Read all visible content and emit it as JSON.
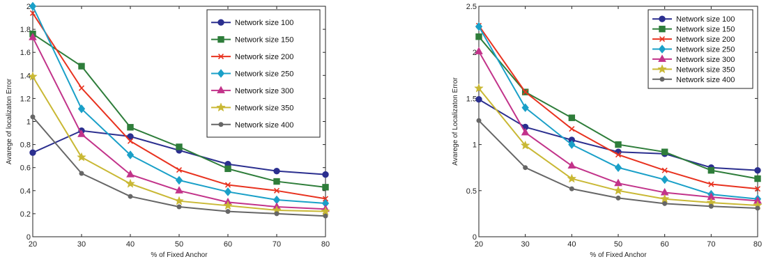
{
  "chart_data": [
    {
      "type": "line",
      "xlabel": "% of Fixed Anchor",
      "ylabel": "Avarege of localizaton Error",
      "x": [
        20,
        30,
        40,
        50,
        60,
        70,
        80
      ],
      "xlim": [
        20,
        80
      ],
      "ylim": [
        0,
        2
      ],
      "xticks": [
        "20",
        "30",
        "40",
        "50",
        "60",
        "70",
        "80"
      ],
      "yticks": [
        "0",
        "0.2",
        "0.4",
        "0.6",
        "0.8",
        "1",
        "1.2",
        "1.4",
        "1.6",
        "1.8",
        "2"
      ],
      "legend_position": "top-right",
      "grid": false,
      "series": [
        {
          "name": "Network size 100",
          "color": "#2b2f8f",
          "marker": "circle",
          "values": [
            0.73,
            0.92,
            0.87,
            0.75,
            0.63,
            0.57,
            0.54
          ]
        },
        {
          "name": "Network size 150",
          "color": "#2e7d3a",
          "marker": "square",
          "values": [
            1.76,
            1.48,
            0.95,
            0.78,
            0.59,
            0.48,
            0.43
          ]
        },
        {
          "name": "Network size 200",
          "color": "#e8321f",
          "marker": "x",
          "values": [
            1.94,
            1.29,
            0.83,
            0.58,
            0.45,
            0.4,
            0.33
          ]
        },
        {
          "name": "Network size 250",
          "color": "#1aa0c8",
          "marker": "diamond",
          "values": [
            2.0,
            1.11,
            0.71,
            0.49,
            0.39,
            0.32,
            0.29
          ]
        },
        {
          "name": "Network size 300",
          "color": "#c2338a",
          "marker": "triangle",
          "values": [
            1.73,
            0.89,
            0.54,
            0.4,
            0.3,
            0.26,
            0.24
          ]
        },
        {
          "name": "Network size 350",
          "color": "#c9b834",
          "marker": "star",
          "values": [
            1.39,
            0.69,
            0.46,
            0.31,
            0.27,
            0.23,
            0.22
          ]
        },
        {
          "name": "Network size 400",
          "color": "#666666",
          "marker": "dot",
          "values": [
            1.04,
            0.55,
            0.35,
            0.26,
            0.22,
            0.2,
            0.18
          ]
        }
      ]
    },
    {
      "type": "line",
      "xlabel": "% of Fixed Anchor",
      "ylabel": "Avarege of Localizaton Error",
      "x": [
        20,
        30,
        40,
        50,
        60,
        70,
        80
      ],
      "xlim": [
        20,
        80
      ],
      "ylim": [
        0,
        2.5
      ],
      "xticks": [
        "20",
        "30",
        "40",
        "50",
        "60",
        "70",
        "80"
      ],
      "yticks": [
        "0",
        "0.5",
        "1",
        "1.5",
        "2",
        "2.5"
      ],
      "legend_position": "top-right",
      "grid": false,
      "series": [
        {
          "name": "Network size 100",
          "color": "#2b2f8f",
          "marker": "circle",
          "values": [
            1.49,
            1.19,
            1.05,
            0.92,
            0.9,
            0.75,
            0.72
          ]
        },
        {
          "name": "Network size 150",
          "color": "#2e7d3a",
          "marker": "square",
          "values": [
            2.17,
            1.57,
            1.29,
            1.0,
            0.92,
            0.72,
            0.63
          ]
        },
        {
          "name": "Network size 200",
          "color": "#e8321f",
          "marker": "x",
          "values": [
            2.29,
            1.57,
            1.17,
            0.89,
            0.72,
            0.57,
            0.52
          ]
        },
        {
          "name": "Network size 250",
          "color": "#1aa0c8",
          "marker": "diamond",
          "values": [
            2.28,
            1.4,
            1.0,
            0.75,
            0.62,
            0.46,
            0.41
          ]
        },
        {
          "name": "Network size 300",
          "color": "#c2338a",
          "marker": "triangle",
          "values": [
            2.01,
            1.13,
            0.77,
            0.58,
            0.48,
            0.43,
            0.39
          ]
        },
        {
          "name": "Network size 350",
          "color": "#c9b834",
          "marker": "star",
          "values": [
            1.61,
            0.99,
            0.63,
            0.5,
            0.41,
            0.37,
            0.34
          ]
        },
        {
          "name": "Network size 400",
          "color": "#666666",
          "marker": "dot",
          "values": [
            1.26,
            0.75,
            0.52,
            0.42,
            0.36,
            0.33,
            0.31
          ]
        }
      ]
    }
  ]
}
